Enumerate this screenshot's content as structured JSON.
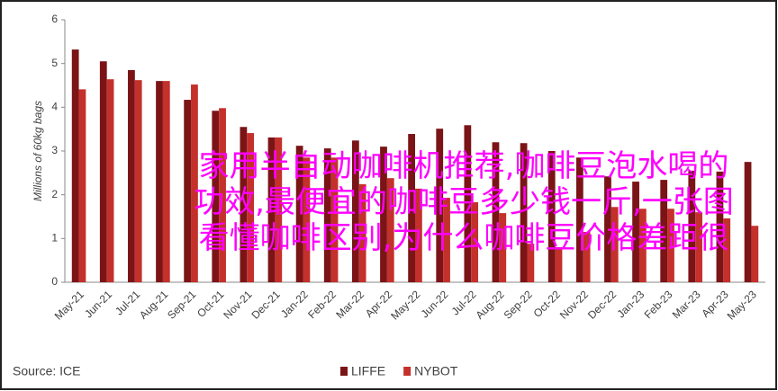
{
  "chart_data": {
    "type": "bar",
    "y_label": "Millions of 60kg bags",
    "source": "Source: ICE",
    "annotation": "家用半自动咖啡机推荐,咖啡豆泡水喝的功效,最便宜的咖啡豆多少钱一斤,一张图看懂咖啡区别,为什么咖啡豆价格差距很大",
    "categories": [
      "May-21",
      "Jun-21",
      "Jul-21",
      "Aug-21",
      "Sep-21",
      "Oct-21",
      "Nov-21",
      "Dec-21",
      "Jan-22",
      "Feb-22",
      "Mar-22",
      "Apr-22",
      "May-22",
      "Jun-22",
      "Jul-22",
      "Aug-22",
      "Sep-22",
      "Oct-22",
      "Nov-22",
      "Dec-22",
      "Jan-23",
      "Feb-23",
      "Mar-23",
      "Apr-23",
      "May-23"
    ],
    "series": [
      {
        "name": "LIFFE",
        "color": "#7b1416",
        "values": [
          5.32,
          5.05,
          4.85,
          4.6,
          4.17,
          3.92,
          3.55,
          3.31,
          3.12,
          3.06,
          3.24,
          3.1,
          3.39,
          3.51,
          3.59,
          3.2,
          3.18,
          3.0,
          2.85,
          2.42,
          2.3,
          2.34,
          2.55,
          2.53,
          2.75
        ]
      },
      {
        "name": "NYBOT",
        "color": "#c4302b",
        "values": [
          4.41,
          4.64,
          4.62,
          4.6,
          4.52,
          3.98,
          3.41,
          3.31,
          2.85,
          2.85,
          2.24,
          2.38,
          2.14,
          1.93,
          1.83,
          1.58,
          0.88,
          0.8,
          1.15,
          1.72,
          1.68,
          1.68,
          1.6,
          1.46,
          1.29
        ]
      }
    ],
    "ylim": [
      0,
      6
    ],
    "yticks": [
      0,
      1,
      2,
      3,
      4,
      5,
      6
    ],
    "grid": false
  }
}
